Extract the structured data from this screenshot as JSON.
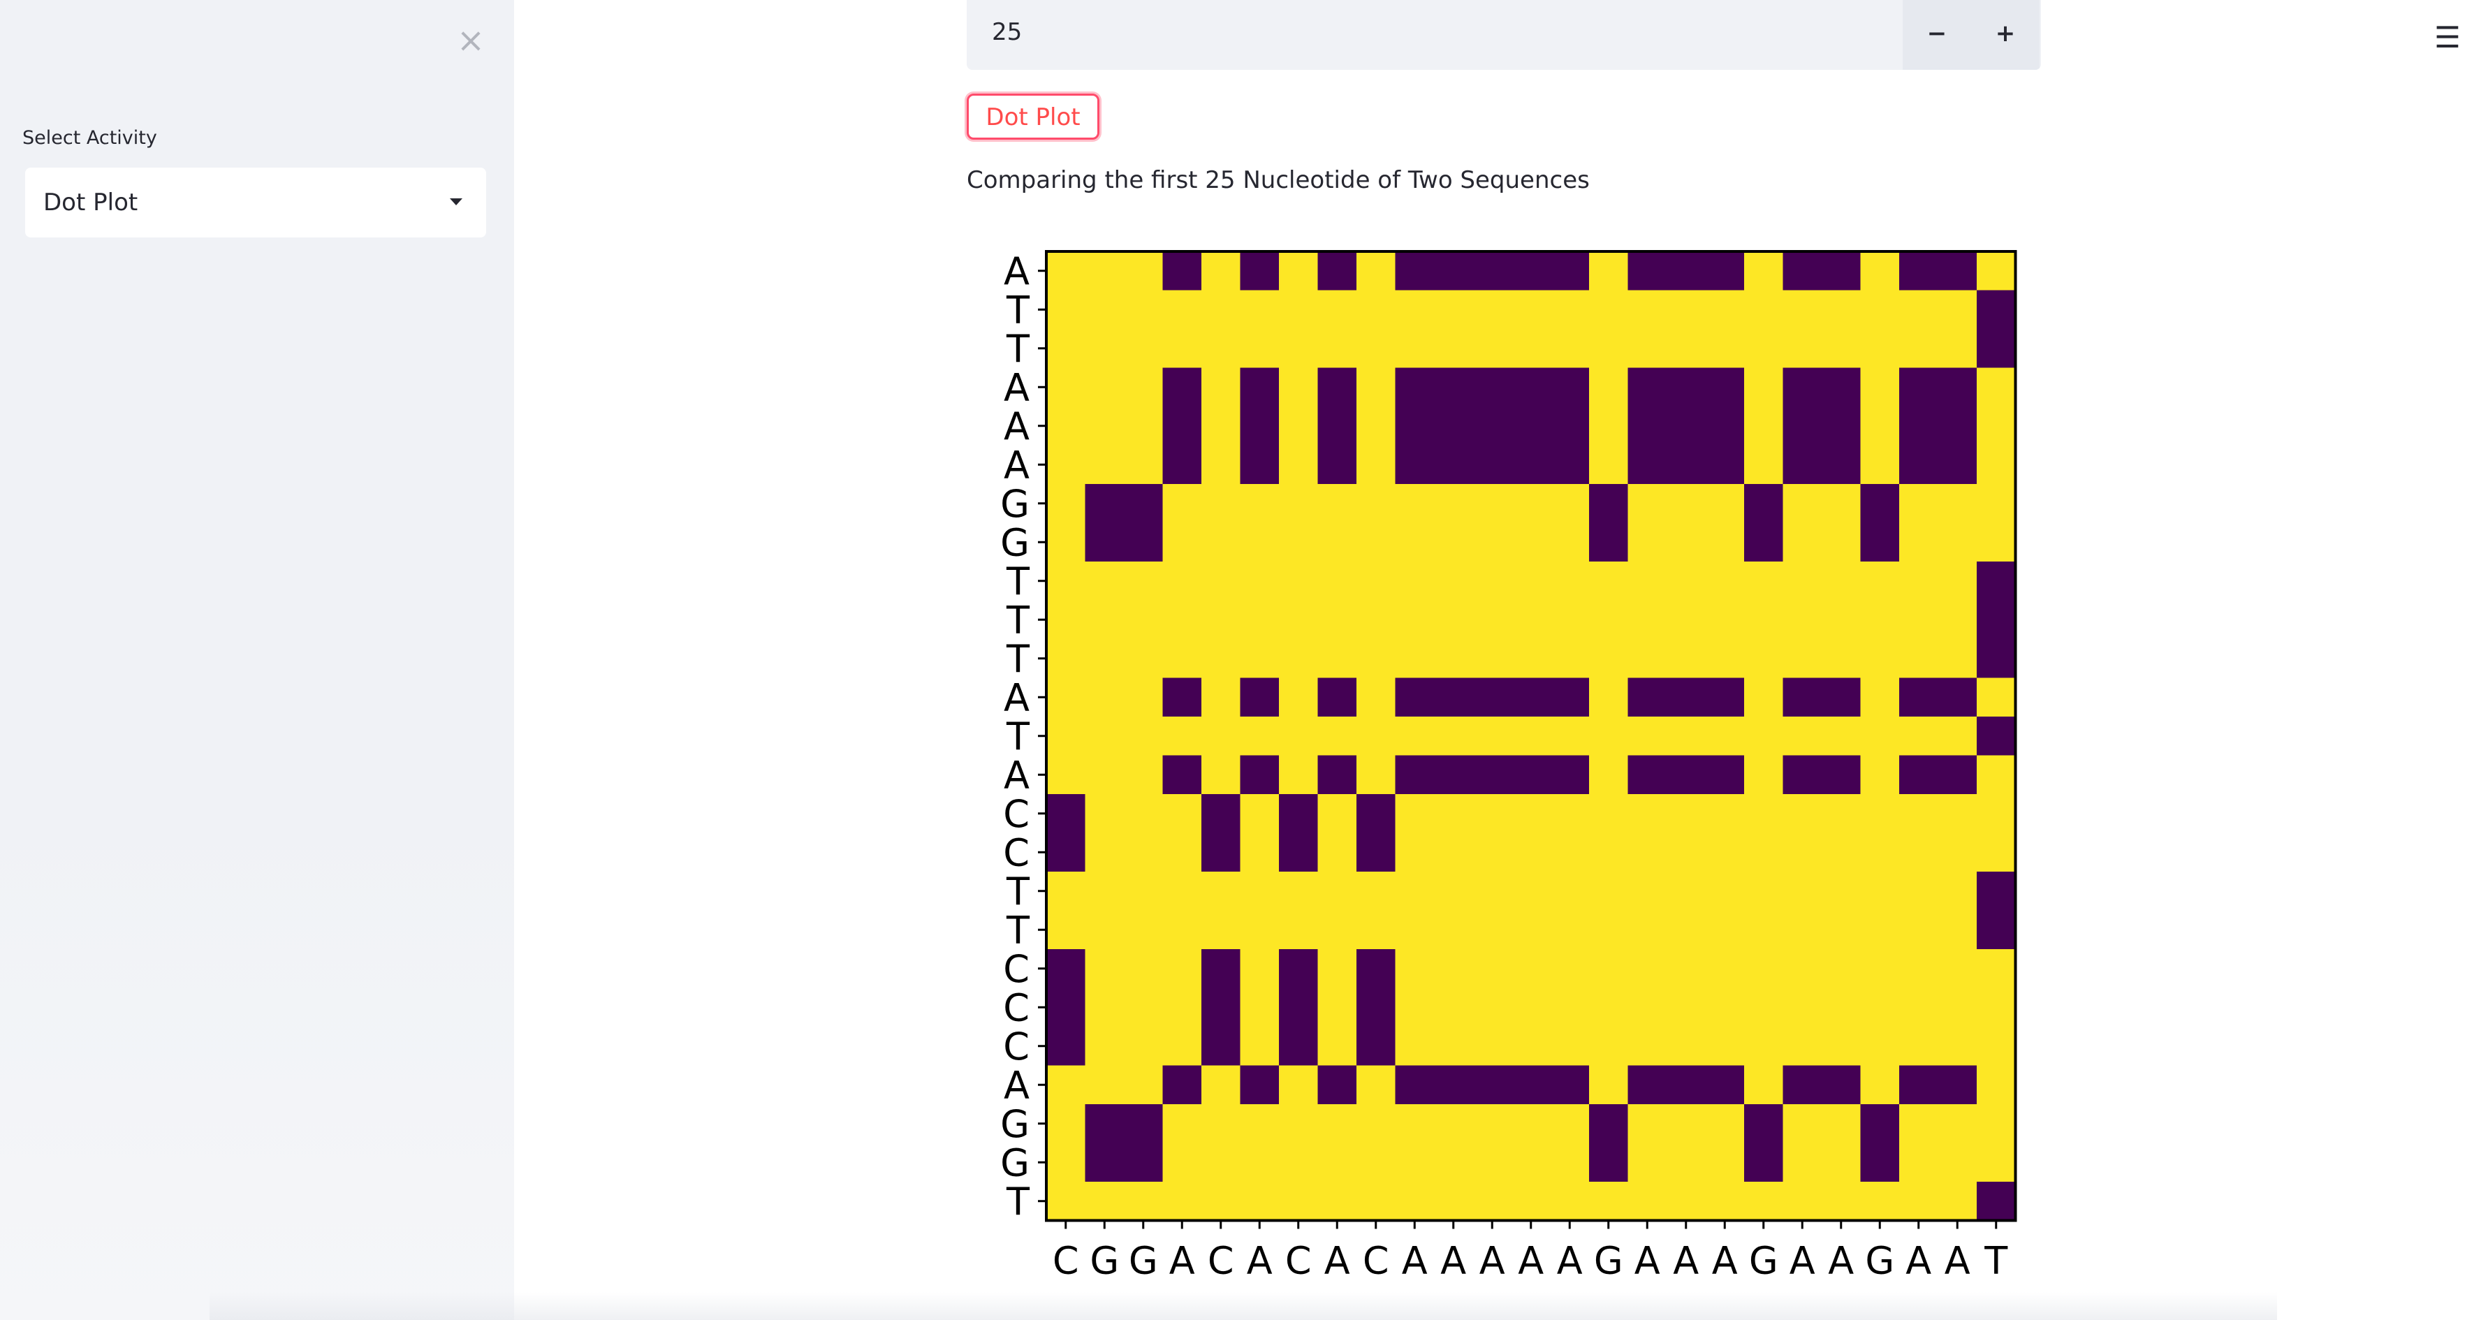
{
  "sidebar": {
    "close_glyph": "×",
    "select_label": "Select Activity",
    "select_value": "Dot Plot"
  },
  "number_input": {
    "value": "25",
    "minus_label": "−",
    "plus_label": "+"
  },
  "menu_glyph": "☰",
  "action_button_label": "Dot Plot",
  "caption": "Comparing the first 25 Nucleotide of Two Sequences",
  "chart_data": {
    "type": "heatmap",
    "x_sequence": [
      "C",
      "G",
      "G",
      "A",
      "C",
      "A",
      "C",
      "A",
      "C",
      "A",
      "A",
      "A",
      "A",
      "A",
      "G",
      "A",
      "A",
      "A",
      "G",
      "A",
      "A",
      "G",
      "A",
      "A",
      "T"
    ],
    "y_sequence": [
      "A",
      "T",
      "T",
      "A",
      "A",
      "A",
      "G",
      "G",
      "T",
      "T",
      "T",
      "A",
      "T",
      "A",
      "C",
      "C",
      "T",
      "T",
      "C",
      "C",
      "C",
      "A",
      "G",
      "G",
      "T"
    ],
    "colors": {
      "match": "#440154",
      "mismatch": "#fde725"
    },
    "title": "",
    "xlabel": "",
    "ylabel": ""
  }
}
